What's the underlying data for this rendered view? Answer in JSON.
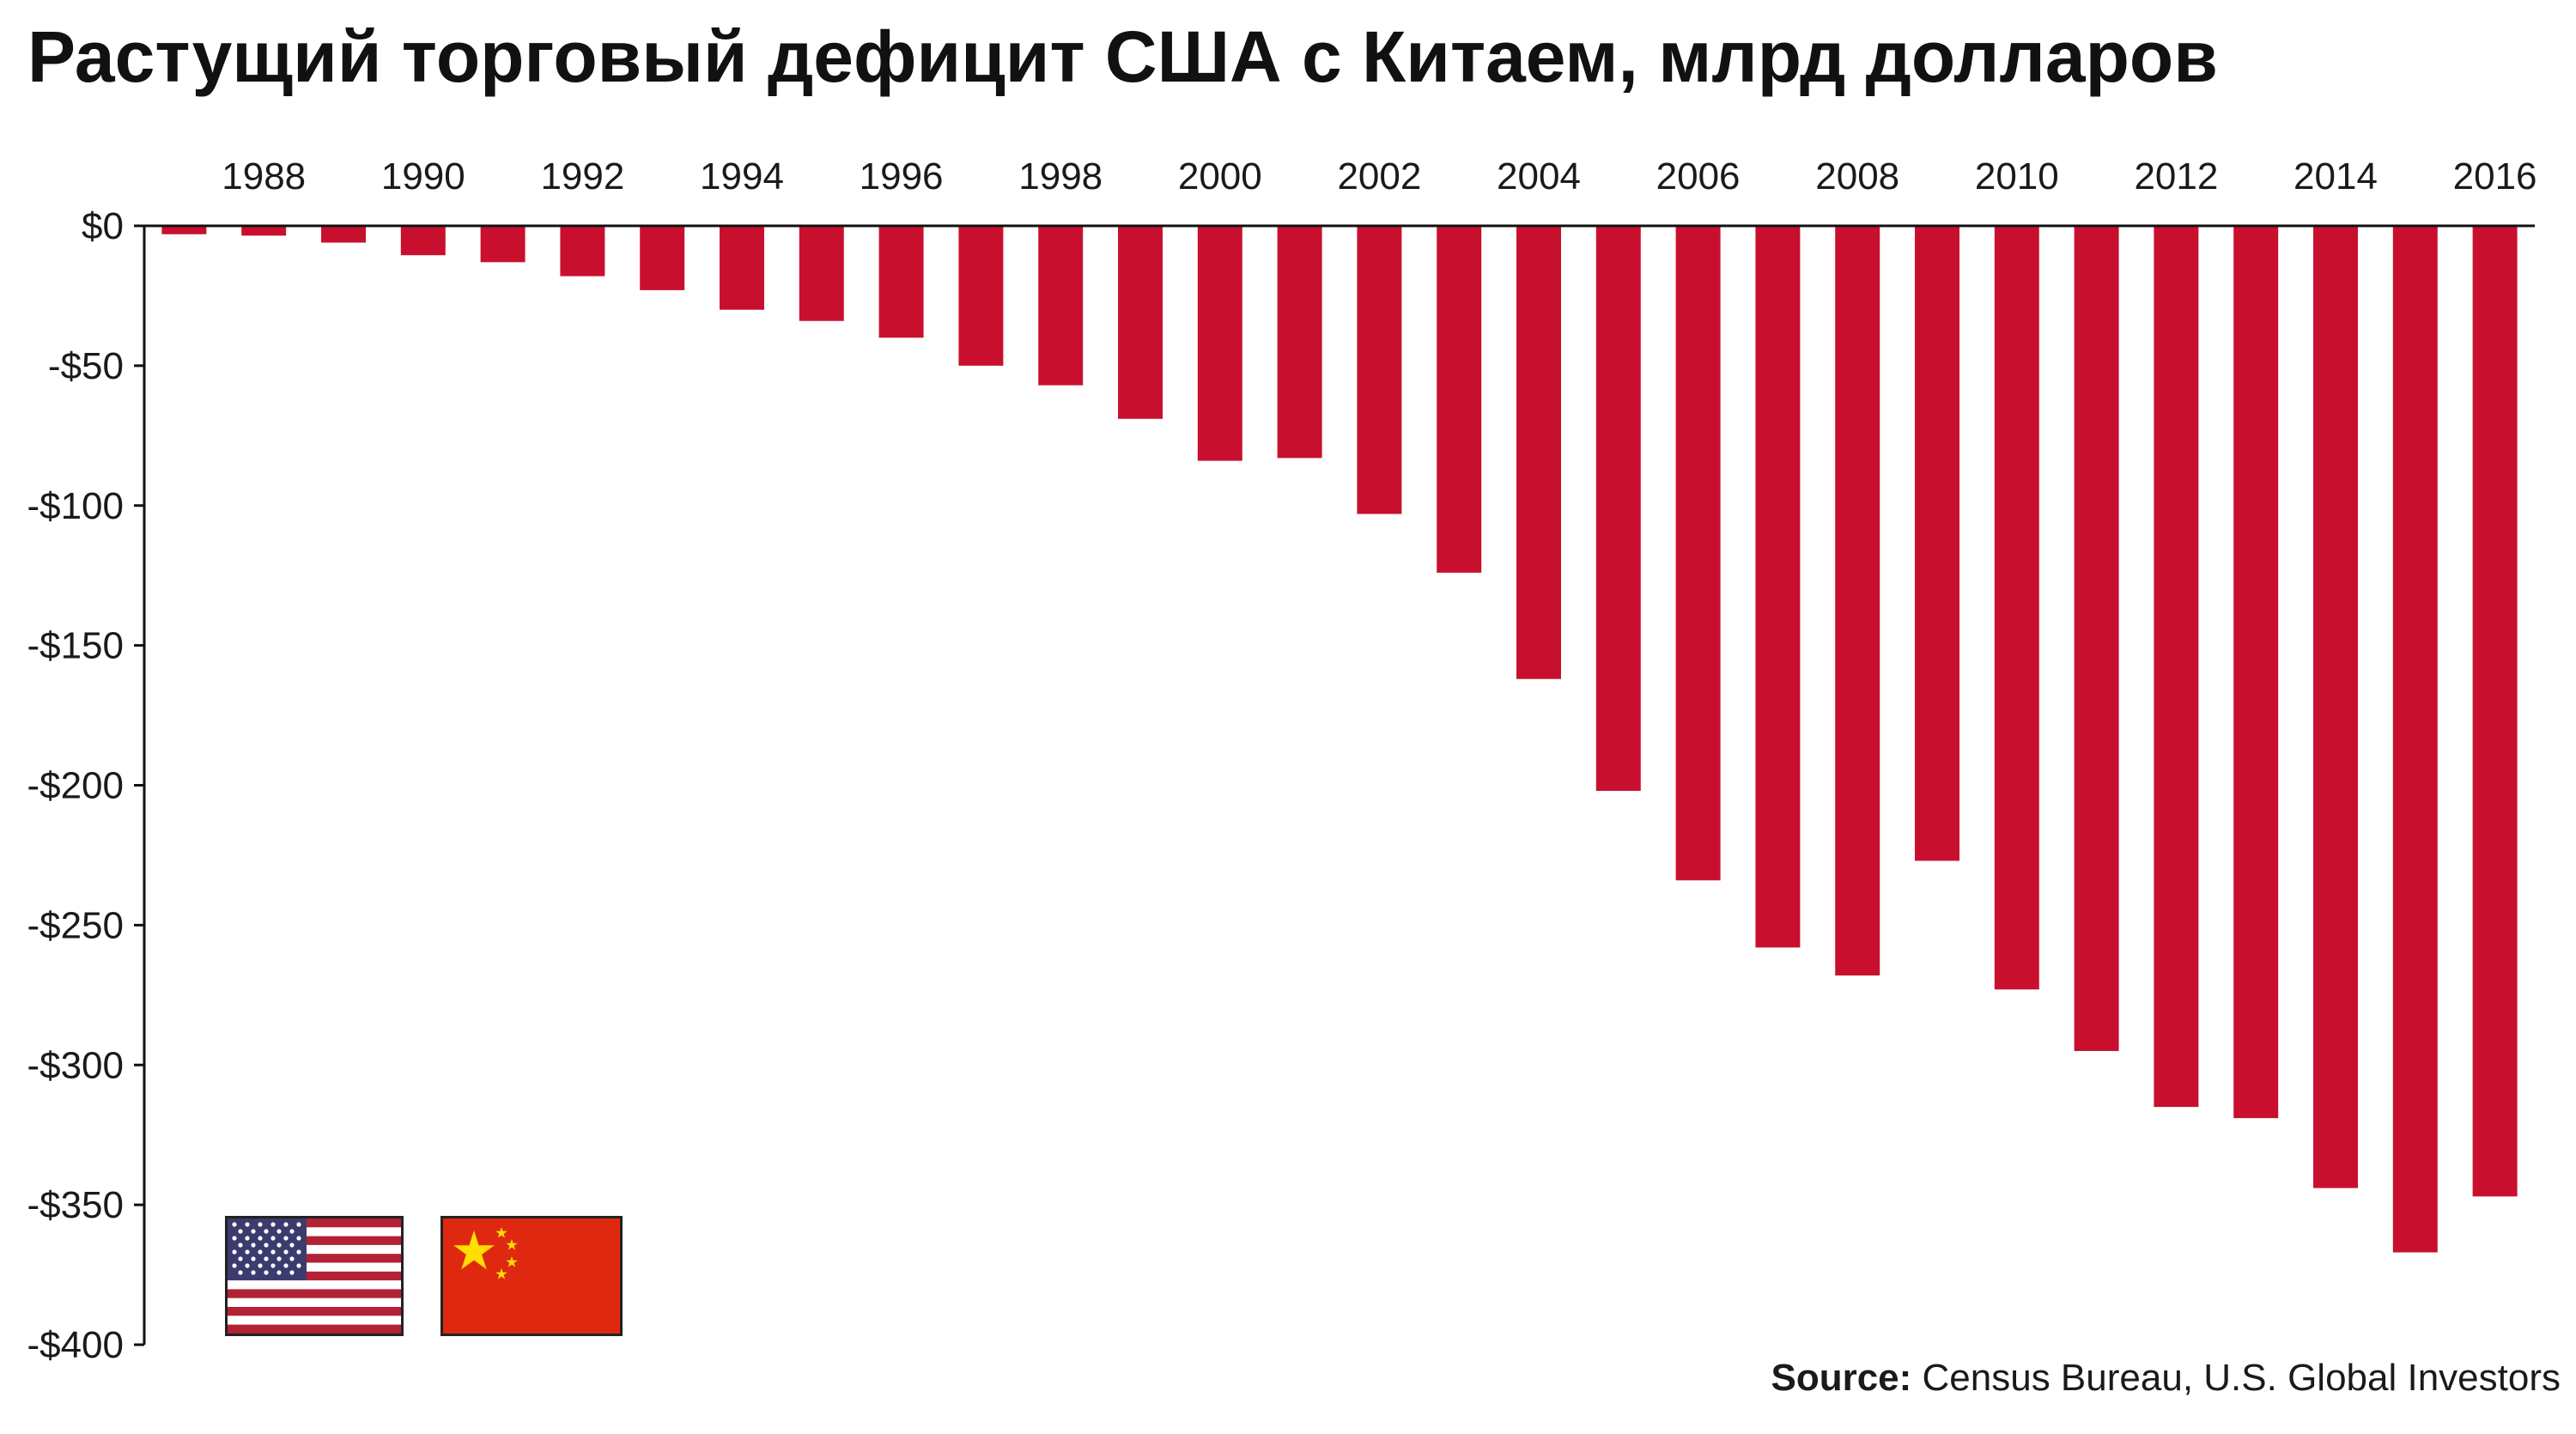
{
  "chart_data": {
    "type": "bar",
    "title": "Растущий торговый дефицит США с Китаем, млрд долларов",
    "xlabel": "",
    "ylabel": "",
    "categories": [
      "1987",
      "1988",
      "1989",
      "1990",
      "1991",
      "1992",
      "1993",
      "1994",
      "1995",
      "1996",
      "1997",
      "1998",
      "1999",
      "2000",
      "2001",
      "2002",
      "2003",
      "2004",
      "2005",
      "2006",
      "2007",
      "2008",
      "2009",
      "2010",
      "2011",
      "2012",
      "2013",
      "2014",
      "2015",
      "2016"
    ],
    "values": [
      -3,
      -3.5,
      -6,
      -10.5,
      -13,
      -18,
      -23,
      -30,
      -34,
      -40,
      -50,
      -57,
      -69,
      -84,
      -83,
      -103,
      -124,
      -162,
      -202,
      -234,
      -258,
      -268,
      -227,
      -273,
      -295,
      -315,
      -319,
      -344,
      -367,
      -347
    ],
    "x_tick_labels": [
      "1988",
      "1990",
      "1992",
      "1994",
      "1996",
      "1998",
      "2000",
      "2002",
      "2004",
      "2006",
      "2008",
      "2010",
      "2012",
      "2014",
      "2016"
    ],
    "y_tick_labels": [
      "$0",
      "-$50",
      "-$100",
      "-$150",
      "-$200",
      "-$250",
      "-$300",
      "-$350",
      "-$400"
    ],
    "ylim": [
      -400,
      0
    ],
    "bar_color": "#c8102e",
    "grid": false,
    "x_axis_position": "top"
  },
  "source": {
    "label": "Source:",
    "text": " Census Bureau, U.S. Global Investors"
  },
  "flags": [
    {
      "name": "us-flag-icon"
    },
    {
      "name": "china-flag-icon"
    }
  ]
}
